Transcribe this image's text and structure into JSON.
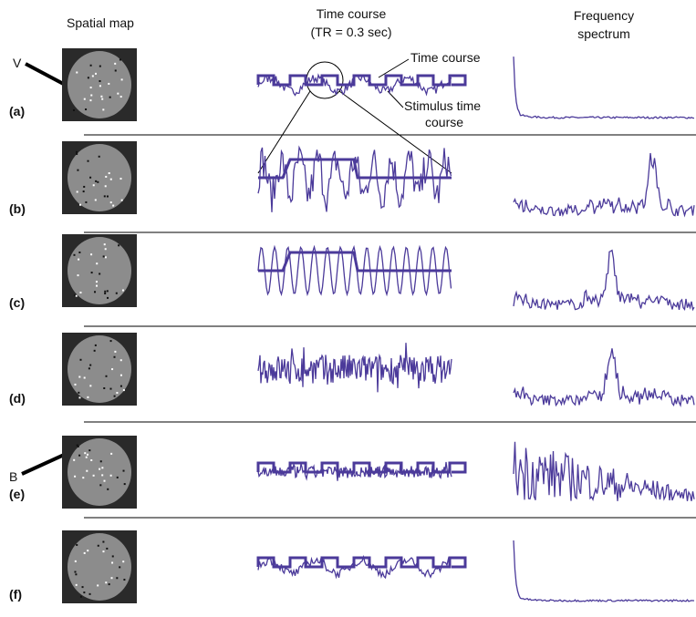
{
  "header": {
    "spatial_map": "Spatial map",
    "time_course": "Time course",
    "tr": "(TR = 0.3 sec)",
    "frequency": "Frequency",
    "spectrum": "spectrum"
  },
  "annotations": {
    "time_course": "Time course",
    "stimulus_1": "Stimulus time",
    "stimulus_2": "course",
    "v": "V",
    "b": "B"
  },
  "rows": [
    {
      "label": "(a)"
    },
    {
      "label": "(b)"
    },
    {
      "label": "(c)"
    },
    {
      "label": "(d)"
    },
    {
      "label": "(e)"
    },
    {
      "label": "(f)"
    }
  ]
}
